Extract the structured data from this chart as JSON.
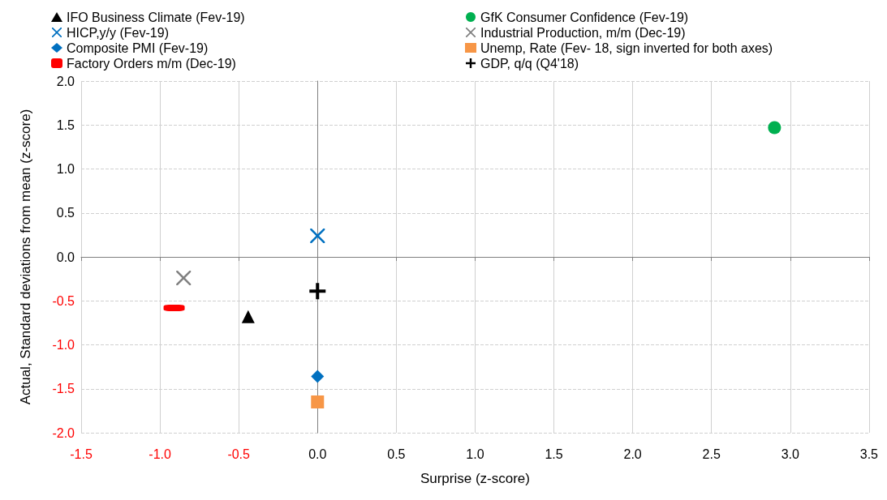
{
  "chart_data": {
    "type": "scatter",
    "xlabel": "Surprise (z-score)",
    "ylabel": "Actual, Standard deviations from mean (z-score)",
    "xlim": [
      -1.5,
      3.5
    ],
    "xticks": [
      -1.5,
      {
        "value": -1,
        "label": "-1.0"
      },
      -0.5,
      {
        "value": 0,
        "label": "0.0"
      },
      0.5,
      {
        "value": 1,
        "label": "1.0"
      },
      1.5,
      {
        "value": 2,
        "label": "2.0"
      },
      2.5,
      {
        "value": 3,
        "label": "3.0"
      },
      3.5
    ],
    "ylim": [
      -2.0,
      2.0
    ],
    "yticks": [
      {
        "value": -2,
        "label": "-2.0"
      },
      -1.5,
      {
        "value": -1,
        "label": "-1.0"
      },
      -0.5,
      {
        "value": 0,
        "label": "0.0"
      },
      0.5,
      {
        "value": 1,
        "label": "1.0"
      },
      1.5,
      {
        "value": 2,
        "label": "2.0"
      }
    ],
    "grid": true,
    "legend": "top",
    "series": [
      {
        "name": "IFO Business Climate (Fev-19)",
        "color": "#000000",
        "marker": "triangle",
        "x": [
          -0.44
        ],
        "values": [
          -0.68
        ]
      },
      {
        "name": "GfK Consumer Confidence (Fev-19)",
        "color": "#00b050",
        "marker": "circle",
        "x": [
          2.9
        ],
        "values": [
          1.47
        ]
      },
      {
        "name": "HICP,y/y (Fev-19)",
        "color": "#0070c0",
        "marker": "cross",
        "x": [
          0.0
        ],
        "values": [
          0.24
        ]
      },
      {
        "name": "Industrial Production, m/m (Dec-19)",
        "color": "#808080",
        "marker": "cross",
        "x": [
          -0.85
        ],
        "values": [
          -0.24
        ]
      },
      {
        "name": "Composite PMI (Fev-19)",
        "color": "#0070c0",
        "marker": "diamond",
        "x": [
          0.0
        ],
        "values": [
          -1.36
        ]
      },
      {
        "name": "Unemp, Rate (Fev- 18, sign inverted for both axes)",
        "color": "#f79646",
        "marker": "square",
        "x": [
          0.0
        ],
        "values": [
          -1.65
        ]
      },
      {
        "name": "Factory Orders m/m (Dec-19)",
        "color": "#ff0000",
        "x": [
          -0.91
        ],
        "values": [
          -0.58
        ]
      },
      {
        "name": "GDP, q/q (Q4'18)",
        "color": "#000000",
        "marker": "plus",
        "x": [
          0.0
        ],
        "values": [
          -0.39
        ]
      }
    ]
  }
}
